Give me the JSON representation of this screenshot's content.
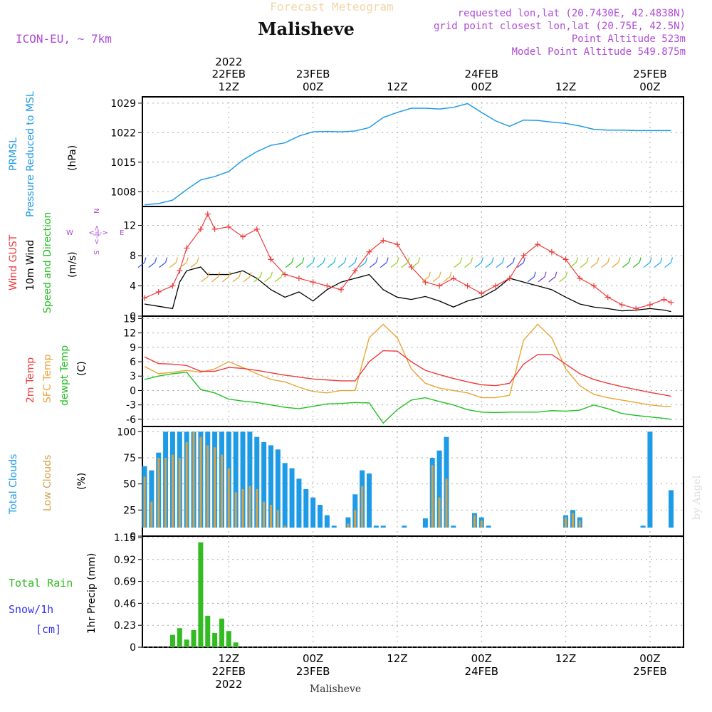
{
  "header": {
    "subtitle": "Forecast Meteogram",
    "location": "Malisheve",
    "model": "ICON-EU, ~ 7km",
    "requested": "requested lon,lat (20.7430E, 42.4838N)",
    "gridpoint": "grid point closest lon,lat (20.75E, 42.5N)",
    "point_alt": "Point Altitude 523m",
    "model_alt": "Model Point Altitude 549.875m"
  },
  "top_axis": {
    "year": "2022",
    "labels": [
      {
        "line1": "22FEB",
        "line2": "12Z"
      },
      {
        "line1": "23FEB",
        "line2": "00Z"
      },
      {
        "line1": "",
        "line2": "12Z"
      },
      {
        "line1": "24FEB",
        "line2": "00Z"
      },
      {
        "line1": "",
        "line2": "12Z"
      },
      {
        "line1": "25FEB",
        "line2": "00Z"
      }
    ]
  },
  "bottom_axis": {
    "labels": [
      {
        "line1": "12Z",
        "line2": "22FEB",
        "line3": "2022"
      },
      {
        "line1": "00Z",
        "line2": "23FEB",
        "line3": ""
      },
      {
        "line1": "12Z",
        "line2": "",
        "line3": ""
      },
      {
        "line1": "00Z",
        "line2": "24FEB",
        "line3": ""
      },
      {
        "line1": "12Z",
        "line2": "",
        "line3": ""
      },
      {
        "line1": "00Z",
        "line2": "25FEB",
        "line3": ""
      }
    ],
    "footer": "Malisheve"
  },
  "watermark": "by Angel",
  "panel_labels": {
    "pressure": [
      "PRMSL",
      "Pressure Reduced to MSL",
      "(hPa)"
    ],
    "wind": [
      "Wind GUST",
      "10m Wind",
      "Speed and Direction",
      "(m/s)"
    ],
    "compass": {
      "n": "N",
      "s": "S",
      "w": "W",
      "e": "E",
      "arrow_ns": "<-|->",
      "arrow_we": "<-|->"
    },
    "temp": [
      "2m Temp",
      "SFC Temp",
      "dewpt Temp",
      "(C)"
    ],
    "clouds": [
      "Total Clouds",
      "Low Clouds",
      "(%)"
    ],
    "precip": [
      "Total  Rain",
      "Snow/1h",
      "[cm]",
      "1hr Precip (mm)"
    ]
  },
  "colors": {
    "pressure": "#1e9be6",
    "gust": "#ee3b3b",
    "wind": "#000000",
    "t2m": "#ee3b3b",
    "tsfc": "#e8a537",
    "dewpt": "#22c022",
    "total_clouds": "#1e9be6",
    "low_clouds": "#d4a24a",
    "rain": "#33bb22",
    "label_purple": "#b04ad8",
    "label_blue": "#3333ee"
  },
  "chart_data": [
    {
      "type": "line",
      "name": "pressure",
      "ylim": [
        1004.5,
        1030.5
      ],
      "yticks": [
        1008,
        1015,
        1022,
        1029
      ],
      "ytick_labels": [
        "1008",
        "1015",
        "1022",
        "1029"
      ],
      "x_hours_from_22FEB00Z": [
        0,
        2,
        4,
        6,
        8,
        10,
        12,
        14,
        16,
        18,
        20,
        22,
        24,
        26,
        28,
        30,
        32,
        34,
        36,
        38,
        40,
        42,
        44,
        46,
        48,
        50,
        52,
        54,
        56,
        58,
        60,
        62,
        64,
        66,
        68,
        70,
        72,
        74,
        75
      ],
      "y": [
        1004.9,
        1005.2,
        1006.0,
        1008.5,
        1010.8,
        1011.6,
        1012.8,
        1015.5,
        1017.5,
        1019.0,
        1019.6,
        1021.2,
        1022.2,
        1022.3,
        1022.2,
        1022.4,
        1023.2,
        1025.6,
        1026.8,
        1027.8,
        1027.8,
        1027.6,
        1028.0,
        1028.9,
        1026.8,
        1024.8,
        1023.5,
        1025.0,
        1024.9,
        1024.5,
        1024.2,
        1023.6,
        1022.8,
        1022.6,
        1022.6,
        1022.5,
        1022.5,
        1022.5,
        1022.5
      ]
    },
    {
      "type": "line",
      "name": "wind",
      "ylim": [
        0,
        14.5
      ],
      "yticks": [
        0,
        4,
        8,
        12
      ],
      "ytick_labels": [
        "0",
        "4",
        "8",
        "12"
      ],
      "x_hours_from_22FEB00Z": [
        0,
        2,
        4,
        5,
        6,
        8,
        9,
        10,
        12,
        14,
        16,
        18,
        20,
        22,
        24,
        26,
        28,
        30,
        32,
        34,
        36,
        38,
        40,
        42,
        44,
        46,
        48,
        50,
        52,
        54,
        56,
        58,
        60,
        62,
        64,
        66,
        68,
        70,
        72,
        74,
        75
      ],
      "gust": [
        2.4,
        3.2,
        4.0,
        6.0,
        9.0,
        11.5,
        13.5,
        11.5,
        11.8,
        10.5,
        11.5,
        7.5,
        5.5,
        5.0,
        4.5,
        4.0,
        3.5,
        6.0,
        8.5,
        10.0,
        9.5,
        6.5,
        4.5,
        4.0,
        5.0,
        4.0,
        3.0,
        4.0,
        5.0,
        8.0,
        9.5,
        8.5,
        7.5,
        5.0,
        4.0,
        2.5,
        1.5,
        1.0,
        1.5,
        2.2,
        1.8
      ],
      "speed": [
        1.6,
        1.3,
        1.0,
        4.5,
        6.0,
        6.5,
        5.5,
        5.5,
        5.5,
        6.0,
        5.0,
        3.5,
        2.5,
        3.2,
        2.0,
        3.5,
        4.5,
        5.0,
        5.5,
        3.5,
        2.5,
        2.2,
        2.6,
        2.0,
        1.2,
        2.0,
        2.5,
        3.5,
        5.0,
        4.5,
        4.0,
        3.5,
        2.5,
        1.6,
        1.2,
        1.0,
        0.7,
        0.8,
        1.0,
        0.8,
        0.6
      ]
    },
    {
      "type": "line",
      "name": "temperature",
      "ylim": [
        -7.5,
        15.5
      ],
      "yticks": [
        -6,
        -3,
        0,
        3,
        6,
        9,
        12,
        15
      ],
      "ytick_labels": [
        "-6",
        "-3",
        "0",
        "3",
        "6",
        "9",
        "12",
        "15"
      ],
      "x_hours_from_22FEB00Z": [
        0,
        2,
        4,
        6,
        8,
        10,
        12,
        14,
        16,
        18,
        20,
        22,
        24,
        26,
        28,
        30,
        32,
        34,
        36,
        38,
        40,
        42,
        44,
        46,
        48,
        50,
        52,
        54,
        56,
        58,
        60,
        62,
        64,
        66,
        68,
        70,
        72,
        74,
        75
      ],
      "t2m": [
        7.0,
        5.6,
        5.5,
        5.2,
        4.0,
        4.0,
        4.8,
        4.6,
        4.2,
        3.7,
        3.2,
        2.8,
        2.4,
        2.2,
        2.0,
        2.0,
        6.0,
        8.3,
        8.2,
        6.0,
        4.2,
        3.3,
        2.5,
        1.8,
        1.2,
        1.0,
        1.5,
        5.5,
        7.5,
        7.5,
        5.5,
        3.5,
        2.3,
        1.5,
        0.8,
        0.2,
        -0.4,
        -0.9,
        -1.2
      ],
      "tsfc": [
        5.0,
        3.5,
        3.8,
        4.2,
        3.8,
        4.5,
        6.0,
        4.8,
        3.5,
        2.3,
        1.8,
        0.7,
        -0.2,
        -0.5,
        0.0,
        0.0,
        11.0,
        13.8,
        11.0,
        4.5,
        1.5,
        0.5,
        0.0,
        -0.5,
        -1.5,
        -1.5,
        -1.0,
        10.5,
        13.8,
        11.0,
        4.5,
        1.0,
        -0.8,
        -1.5,
        -2.0,
        -2.5,
        -3.0,
        -3.3,
        -3.3
      ],
      "dewpt": [
        2.3,
        3.0,
        3.5,
        3.8,
        0.2,
        -0.5,
        -1.8,
        -2.2,
        -2.5,
        -3.0,
        -3.5,
        -3.8,
        -3.3,
        -2.8,
        -2.7,
        -2.5,
        -2.6,
        -6.8,
        -4.0,
        -2.0,
        -1.5,
        -2.3,
        -3.0,
        -4.0,
        -4.5,
        -4.6,
        -4.5,
        -4.5,
        -4.5,
        -4.2,
        -4.3,
        -4.1,
        -3.0,
        -3.8,
        -4.8,
        -5.2,
        -5.5,
        -5.8,
        -6.0
      ]
    },
    {
      "type": "bar",
      "name": "clouds",
      "ylim": [
        0,
        105
      ],
      "yticks": [
        0,
        25,
        50,
        75,
        100
      ],
      "ytick_labels": [
        "0",
        "25",
        "50",
        "75",
        "100"
      ],
      "x_hours_from_22FEB00Z": [
        0,
        1,
        2,
        3,
        4,
        5,
        6,
        7,
        8,
        9,
        10,
        11,
        12,
        13,
        14,
        15,
        16,
        17,
        18,
        19,
        20,
        21,
        22,
        23,
        24,
        25,
        26,
        27,
        28,
        29,
        30,
        31,
        32,
        33,
        34,
        35,
        36,
        37,
        38,
        39,
        40,
        41,
        42,
        43,
        44,
        45,
        46,
        47,
        48,
        49,
        50,
        51,
        52,
        53,
        54,
        55,
        56,
        57,
        58,
        59,
        60,
        61,
        62,
        63,
        64,
        65,
        66,
        67,
        68,
        69,
        70,
        71,
        72,
        73,
        74,
        75
      ],
      "total": [
        67,
        63,
        80,
        100,
        100,
        100,
        100,
        100,
        100,
        100,
        100,
        100,
        100,
        100,
        100,
        100,
        95,
        90,
        87,
        83,
        70,
        65,
        55,
        45,
        37,
        30,
        20,
        10,
        2,
        18,
        40,
        63,
        60,
        10,
        10,
        0,
        0,
        10,
        0,
        0,
        17,
        75,
        82,
        95,
        10,
        3,
        1,
        22,
        18,
        10,
        0,
        0,
        0,
        0,
        0,
        0,
        0,
        0,
        0,
        7,
        20,
        25,
        18,
        0,
        0,
        0,
        0,
        0,
        0,
        0,
        0,
        10,
        100,
        1,
        2,
        44
      ],
      "low": [
        57,
        33,
        75,
        75,
        78,
        75,
        90,
        100,
        95,
        87,
        85,
        78,
        65,
        42,
        45,
        48,
        45,
        33,
        30,
        25,
        10,
        5,
        0,
        0,
        0,
        0,
        0,
        0,
        0,
        12,
        25,
        48,
        0,
        0,
        0,
        0,
        0,
        0,
        0,
        0,
        0,
        68,
        37,
        55,
        0,
        2,
        0,
        20,
        15,
        8,
        0,
        0,
        0,
        0,
        0,
        0,
        0,
        0,
        0,
        6,
        18,
        22,
        15,
        0,
        0,
        0,
        0,
        0,
        0,
        0,
        0,
        0,
        0,
        0,
        0,
        0
      ]
    },
    {
      "type": "bar",
      "name": "precip",
      "ylim": [
        0,
        1.15
      ],
      "yticks": [
        0,
        0.23,
        0.46,
        0.69,
        0.92,
        1.15
      ],
      "ytick_labels": [
        "0",
        "0.23",
        "0.46",
        "0.69",
        "0.92",
        "1.15"
      ],
      "x_hours_from_22FEB00Z": [
        4,
        5,
        6,
        7,
        8,
        9,
        10,
        11,
        12,
        13
      ],
      "rain": [
        0.13,
        0.2,
        0.08,
        0.18,
        1.1,
        0.33,
        0.15,
        0.3,
        0.17,
        0.05
      ]
    }
  ]
}
